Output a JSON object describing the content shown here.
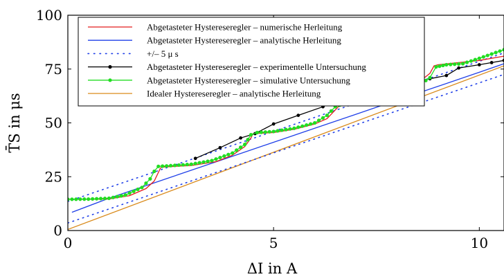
{
  "chart_data": {
    "type": "line",
    "xlabel": "ΔI in A",
    "ylabel": "T̄S in μs",
    "xlim": [
      0,
      10.6
    ],
    "ylim": [
      0,
      100
    ],
    "xticks": [
      0,
      5,
      10
    ],
    "xtick_labels": [
      "0",
      "5",
      "10"
    ],
    "yticks": [
      0,
      25,
      50,
      75,
      100
    ],
    "ytick_labels": [
      "0",
      "25",
      "50",
      "75",
      "100"
    ],
    "grid": false,
    "legend_position": "top-left",
    "series": [
      {
        "name": "Abgetasteter Hystereseregler – numerische Herleitung",
        "color": "#e41a1c",
        "style": "solid",
        "marker": "none",
        "x": [
          0,
          0.5,
          1.0,
          1.5,
          1.9,
          2.1,
          2.2,
          2.25,
          2.3,
          3.0,
          3.6,
          4.0,
          4.3,
          4.45,
          4.5,
          5.0,
          5.5,
          6.0,
          6.3,
          6.5,
          6.6,
          7.0,
          8.0,
          8.5,
          8.8,
          8.9,
          9.0,
          10.0,
          10.6
        ],
        "y": [
          14.5,
          14.5,
          14.7,
          16.2,
          19.5,
          23.0,
          27.0,
          29.0,
          29.5,
          30.2,
          32.0,
          35.0,
          39.0,
          43.0,
          45.0,
          45.5,
          47.0,
          49.5,
          52.0,
          56.0,
          58.0,
          60.5,
          65.0,
          68.5,
          73.0,
          76.5,
          77.0,
          79.0,
          81.0
        ]
      },
      {
        "name": "Abgetasteter Hystereseregler – analytische Herleitung",
        "color": "#1f3fe8",
        "style": "solid",
        "marker": "none",
        "x": [
          0.1,
          1.0,
          2.0,
          3.0,
          4.0,
          5.0,
          6.0,
          7.0,
          8.0,
          9.0,
          10.0,
          10.6
        ],
        "y": [
          8.5,
          15.0,
          21.5,
          28.0,
          34.5,
          41.0,
          47.5,
          54.0,
          60.5,
          67.0,
          73.5,
          77.5
        ]
      },
      {
        "name": "+/– 5 μ s",
        "color": "#1f3fe8",
        "style": "dotted",
        "marker": "none",
        "x": [
          0,
          10.6
        ],
        "y": [
          3.5,
          72.5
        ],
        "x2": [
          0,
          10.6
        ],
        "y2": [
          13.5,
          82.5
        ]
      },
      {
        "name": "Abgetasteter Hystereseregler – experimentelle Untersuchung",
        "color": "#000000",
        "style": "solid",
        "marker": "dot",
        "x": [
          3.1,
          3.7,
          4.2,
          4.55,
          5.0,
          5.6,
          6.2,
          6.65,
          7.2,
          7.8,
          8.4,
          8.8,
          9.2,
          9.5,
          10.0,
          10.3,
          10.6
        ],
        "y": [
          33.5,
          38.5,
          43.0,
          45.0,
          49.5,
          53.5,
          57.5,
          61.0,
          63.5,
          66.0,
          69.0,
          70.5,
          72.0,
          75.5,
          77.0,
          78.0,
          79.0
        ]
      },
      {
        "name": "Abgetasteter Hystereseregler – simulative Untersuchung",
        "color": "#22dd22",
        "style": "solid",
        "marker": "dot",
        "x": [
          0,
          0.5,
          1.0,
          1.4,
          1.8,
          2.0,
          2.1,
          2.2,
          2.4,
          3.0,
          3.5,
          4.0,
          4.3,
          4.45,
          4.6,
          5.0,
          5.5,
          6.0,
          6.3,
          6.5,
          7.0,
          7.5,
          8.0,
          8.5,
          8.8,
          8.95,
          9.2,
          9.6,
          10.0,
          10.6
        ],
        "y": [
          14.5,
          14.6,
          15.0,
          16.5,
          20.0,
          24.0,
          27.5,
          29.8,
          30.0,
          30.8,
          32.5,
          36.0,
          40.0,
          44.5,
          45.5,
          46.0,
          47.5,
          50.0,
          53.5,
          57.5,
          61.0,
          62.0,
          63.5,
          67.0,
          71.0,
          76.0,
          77.0,
          77.5,
          80.0,
          84.0
        ]
      },
      {
        "name": "Idealer Hystereseregler – analytische Herleitung",
        "color": "#d98a1a",
        "style": "solid",
        "marker": "none",
        "x": [
          0,
          10.6
        ],
        "y": [
          0.5,
          76.5
        ]
      }
    ]
  }
}
